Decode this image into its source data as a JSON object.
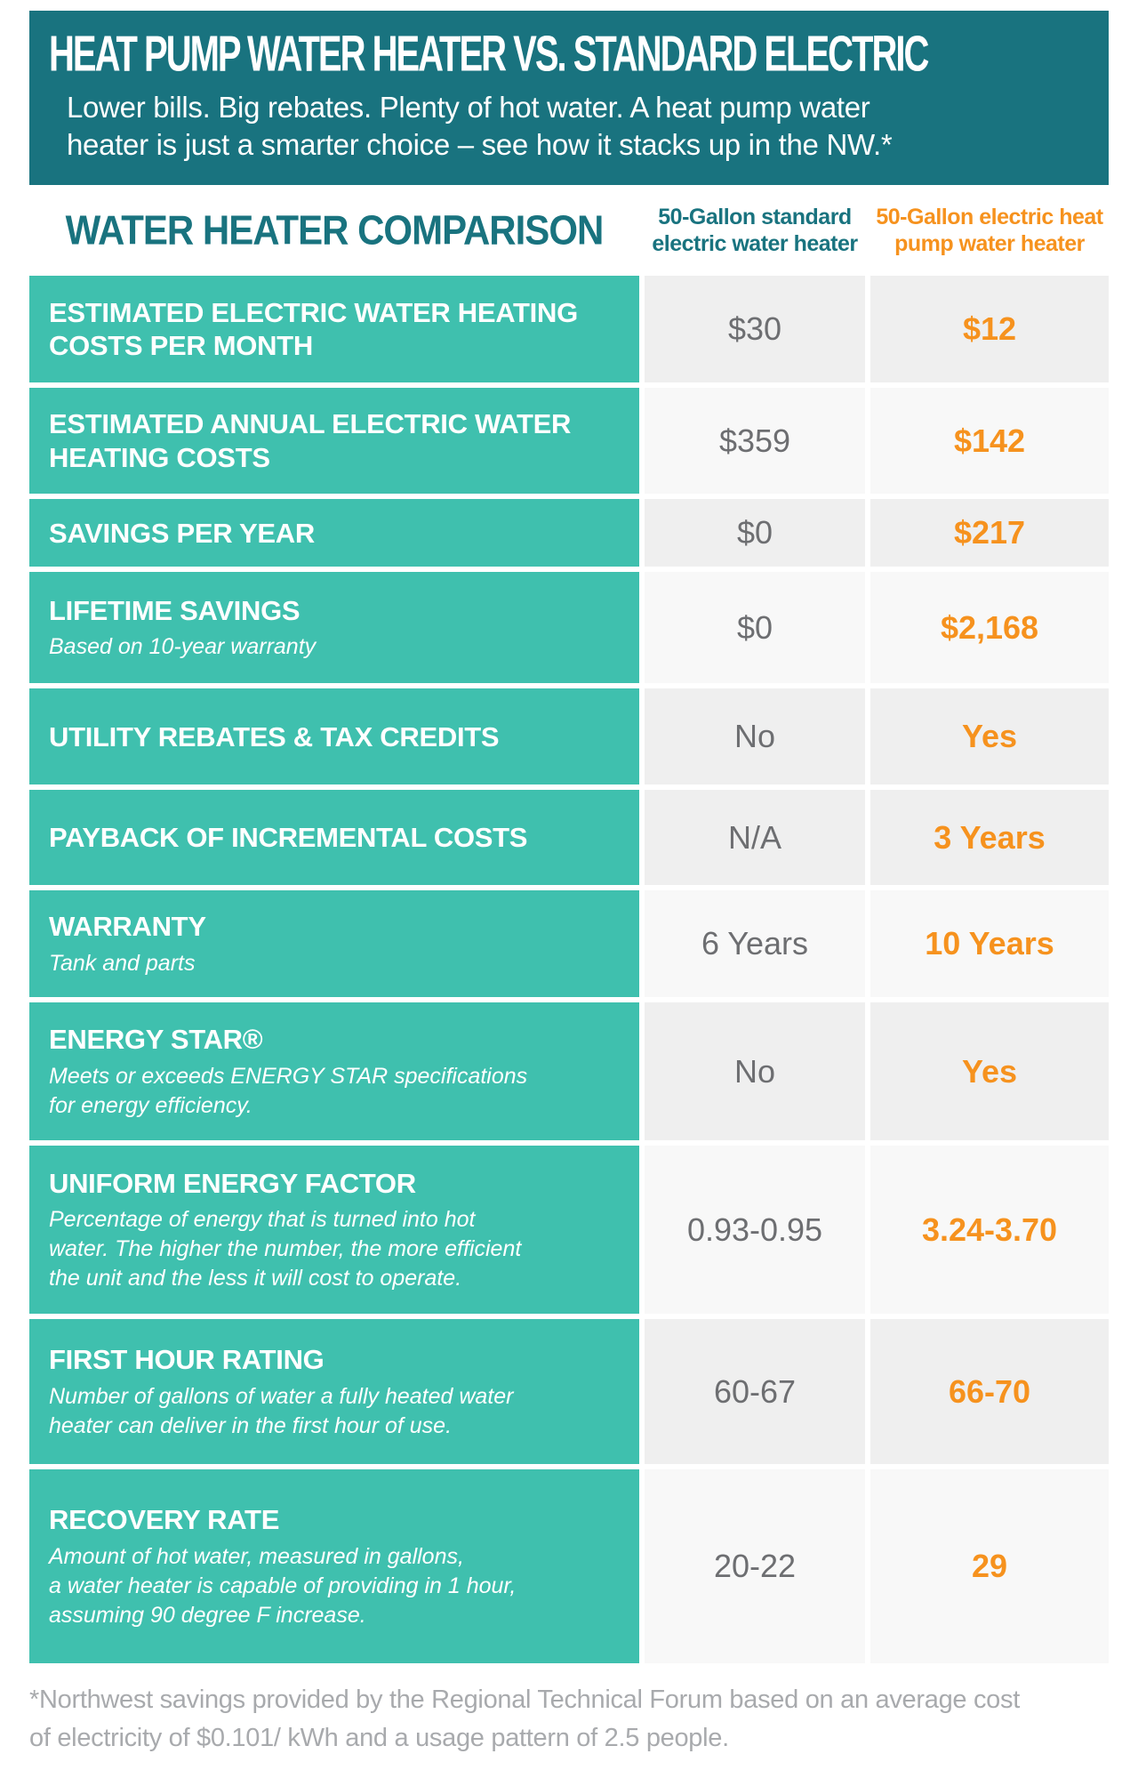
{
  "hero": {
    "title": "HEAT PUMP WATER HEATER VS. STANDARD ELECTRIC",
    "subtitle": "Lower bills. Big rebates. Plenty of hot water. A heat pump water\nheater is just a smarter choice – see how it stacks up in the NW.*"
  },
  "chart_data": {
    "type": "table",
    "title": "WATER HEATER COMPARISON",
    "columns": [
      "50-Gallon standard\nelectric water heater",
      "50-Gallon electric heat\npump water heater"
    ],
    "rows": [
      {
        "label": "ESTIMATED ELECTRIC WATER HEATING\nCOSTS PER MONTH",
        "note": "",
        "standard": "$30",
        "heat_pump": "$12"
      },
      {
        "label": "ESTIMATED ANNUAL ELECTRIC WATER\nHEATING COSTS",
        "note": "",
        "standard": "$359",
        "heat_pump": "$142"
      },
      {
        "label": "SAVINGS PER YEAR",
        "note": "",
        "standard": "$0",
        "heat_pump": "$217"
      },
      {
        "label": "LIFETIME SAVINGS",
        "note": "Based on 10-year warranty",
        "standard": "$0",
        "heat_pump": "$2,168"
      },
      {
        "label": "UTILITY REBATES & TAX CREDITS",
        "note": "",
        "standard": "No",
        "heat_pump": "Yes"
      },
      {
        "label": "PAYBACK OF INCREMENTAL COSTS",
        "note": "",
        "standard": "N/A",
        "heat_pump": "3 Years"
      },
      {
        "label": "WARRANTY",
        "note": "Tank and parts",
        "standard": "6 Years",
        "heat_pump": "10 Years"
      },
      {
        "label": "ENERGY STAR®",
        "note": "Meets or exceeds ENERGY STAR specifications\nfor energy efficiency.",
        "standard": "No",
        "heat_pump": "Yes"
      },
      {
        "label": "UNIFORM ENERGY FACTOR",
        "note": "Percentage of energy that is turned into hot\nwater. The higher the number, the more efficient\nthe unit and the less it will cost to operate.",
        "standard": "0.93-0.95",
        "heat_pump": "3.24-3.70"
      },
      {
        "label": "FIRST HOUR RATING",
        "note": "Number of gallons of water a fully heated water\nheater can deliver in the first hour of use.",
        "standard": "60-67",
        "heat_pump": "66-70"
      },
      {
        "label": "RECOVERY RATE",
        "note": "Amount of hot water, measured in gallons,\na water heater is capable of providing in 1 hour,\nassuming 90 degree F increase.",
        "standard": "20-22",
        "heat_pump": "29"
      }
    ]
  },
  "footnote": "*Northwest savings provided by the Regional Technical Forum based on an average cost\nof electricity of $0.101/ kWh and a usage pattern of 2.5 people.",
  "colors": {
    "header_background": "#19737f",
    "row_label_teal": "#3fc0ae",
    "accent_orange": "#f6921e",
    "value_gray": "#6d6e71",
    "cell_shade_dark": "#efefef",
    "cell_shade_light": "#f8f8f8",
    "footnote_gray": "#a8aaad"
  }
}
